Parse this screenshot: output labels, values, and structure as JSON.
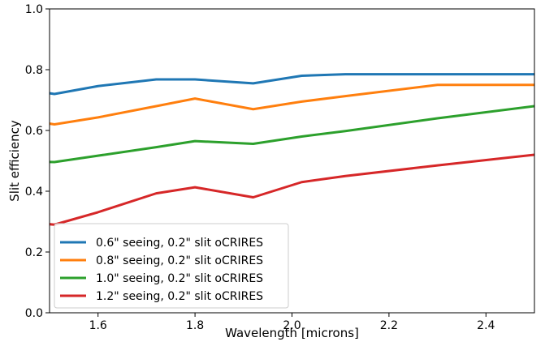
{
  "chart_data": {
    "type": "line",
    "xlabel": "Wavelength [microns]",
    "ylabel": "Slit efficiency",
    "xlim": [
      1.5,
      2.5
    ],
    "ylim": [
      0.0,
      1.0
    ],
    "xticks": [
      "1.6",
      "1.8",
      "2.0",
      "2.2",
      "2.4"
    ],
    "xtick_values": [
      1.6,
      1.8,
      2.0,
      2.2,
      2.4
    ],
    "yticks": [
      "0.0",
      "0.2",
      "0.4",
      "0.6",
      "0.8",
      "1.0"
    ],
    "ytick_values": [
      0.0,
      0.2,
      0.4,
      0.6,
      0.8,
      1.0
    ],
    "grid": false,
    "legend_position": "lower-left",
    "series": [
      {
        "name": "0.6\" seeing, 0.2\" slit oCRIRES",
        "color": "#1f77b4",
        "x": [
          1.49,
          1.51,
          1.6,
          1.72,
          1.8,
          1.92,
          2.02,
          2.11,
          2.3,
          2.5
        ],
        "y": [
          0.725,
          0.72,
          0.746,
          0.768,
          0.768,
          0.755,
          0.78,
          0.785,
          0.785,
          0.785
        ]
      },
      {
        "name": "0.8\" seeing, 0.2\" slit oCRIRES",
        "color": "#ff7f0e",
        "x": [
          1.49,
          1.51,
          1.6,
          1.72,
          1.8,
          1.92,
          2.02,
          2.11,
          2.3,
          2.5
        ],
        "y": [
          0.625,
          0.62,
          0.643,
          0.68,
          0.705,
          0.67,
          0.695,
          0.713,
          0.75,
          0.75
        ]
      },
      {
        "name": "1.0\" seeing, 0.2\" slit oCRIRES",
        "color": "#2ca02c",
        "x": [
          1.49,
          1.51,
          1.6,
          1.72,
          1.8,
          1.92,
          2.02,
          2.11,
          2.3,
          2.5
        ],
        "y": [
          0.497,
          0.496,
          0.517,
          0.545,
          0.565,
          0.556,
          0.58,
          0.598,
          0.64,
          0.68
        ]
      },
      {
        "name": "1.2\" seeing, 0.2\" slit oCRIRES",
        "color": "#d62728",
        "x": [
          1.49,
          1.51,
          1.6,
          1.72,
          1.8,
          1.92,
          2.02,
          2.11,
          2.3,
          2.5
        ],
        "y": [
          0.293,
          0.29,
          0.331,
          0.393,
          0.413,
          0.38,
          0.43,
          0.45,
          0.485,
          0.52
        ]
      }
    ]
  }
}
